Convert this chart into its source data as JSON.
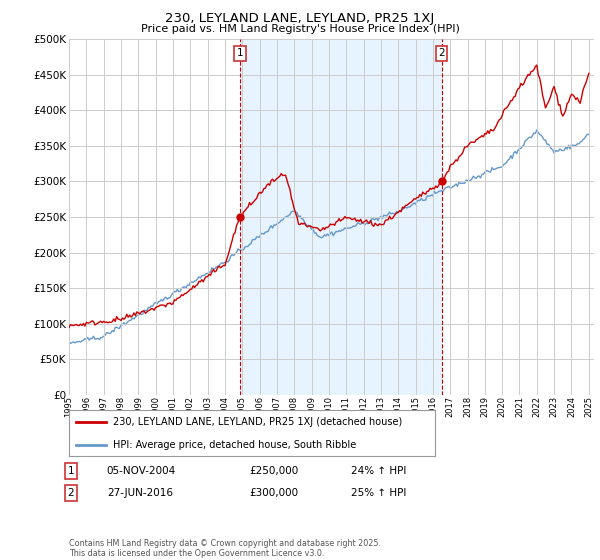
{
  "title_line1": "230, LEYLAND LANE, LEYLAND, PR25 1XJ",
  "title_line2": "Price paid vs. HM Land Registry's House Price Index (HPI)",
  "ytick_values": [
    0,
    50000,
    100000,
    150000,
    200000,
    250000,
    300000,
    350000,
    400000,
    450000,
    500000
  ],
  "ylim": [
    0,
    500000
  ],
  "background_color": "#ffffff",
  "plot_bg_color": "#ffffff",
  "grid_color": "#cccccc",
  "line1_color": "#cc0000",
  "line2_color": "#6699cc",
  "fill_color": "#ddeeff",
  "vline_color": "#cc0000",
  "annotation1": {
    "label": "1",
    "price": "£250,000",
    "pct": "24% ↑ HPI",
    "date": "05-NOV-2004"
  },
  "annotation2": {
    "label": "2",
    "price": "£300,000",
    "pct": "25% ↑ HPI",
    "date": "27-JUN-2016"
  },
  "legend_line1": "230, LEYLAND LANE, LEYLAND, PR25 1XJ (detached house)",
  "legend_line2": "HPI: Average price, detached house, South Ribble",
  "footer": "Contains HM Land Registry data © Crown copyright and database right 2025.\nThis data is licensed under the Open Government Licence v3.0.",
  "x_start_year": 1995,
  "x_end_year": 2025,
  "vline1_year": 2004.85,
  "vline2_year": 2016.5,
  "dot1_year": 2004.85,
  "dot1_value": 250000,
  "dot2_year": 2016.5,
  "dot2_value": 300000
}
